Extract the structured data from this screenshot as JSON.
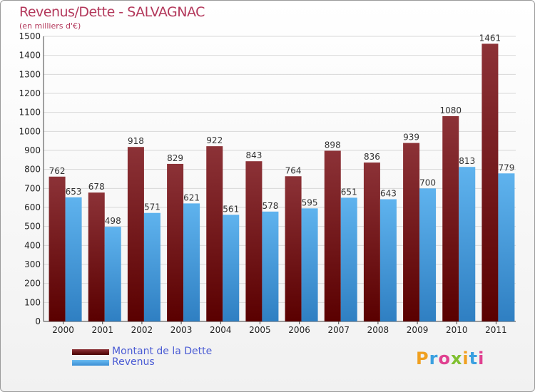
{
  "header": {
    "title": "Revenus/Dette - SALVAGNAC",
    "subtitle": "(en milliers d'€)"
  },
  "colors": {
    "dette": "#7b2426",
    "revenus": "#4aa2e0",
    "title": "#b3385b",
    "legend_text": "#4a5bd4"
  },
  "legend": [
    {
      "label": "Montant de la Dette",
      "color": "#6b0d12"
    },
    {
      "label": "Revenus",
      "color": "#4aa2e0"
    }
  ],
  "logo": {
    "letters": [
      "P",
      "r",
      "o",
      "x",
      "i",
      "t",
      "i"
    ],
    "colors": [
      "#f0a020",
      "#3aa0e0",
      "#e04090",
      "#80c030",
      "#f0a020",
      "#3aa0e0",
      "#e04090"
    ]
  },
  "chart_data": {
    "type": "bar",
    "categories": [
      "2000",
      "2001",
      "2002",
      "2003",
      "2004",
      "2005",
      "2006",
      "2007",
      "2008",
      "2009",
      "2010",
      "2011"
    ],
    "series": [
      {
        "name": "Montant de la Dette",
        "values": [
          762,
          678,
          918,
          829,
          922,
          843,
          764,
          898,
          836,
          939,
          1080,
          1461
        ]
      },
      {
        "name": "Revenus",
        "values": [
          653,
          498,
          571,
          621,
          561,
          578,
          595,
          651,
          643,
          700,
          813,
          779
        ]
      }
    ],
    "ylim": [
      0,
      1500
    ],
    "yticks": [
      0,
      100,
      200,
      300,
      400,
      500,
      600,
      700,
      800,
      900,
      1000,
      1100,
      1200,
      1300,
      1400,
      1500
    ],
    "grid": true,
    "legend_position": "bottom-left"
  }
}
